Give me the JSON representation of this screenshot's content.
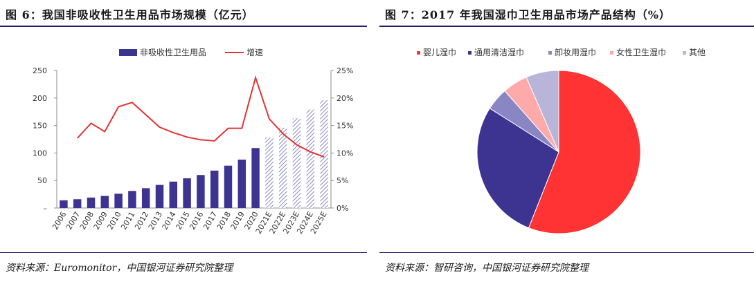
{
  "colors": {
    "bar": "#3d3491",
    "line": "#e53232",
    "forecast_hatch": "#8a86c4",
    "rule": "#1f1f66"
  },
  "left": {
    "title": "图 6：我国非吸收性卫生用品市场规模（亿元）",
    "source": "资料来源：Euromonitor，中国银河证券研究院整理"
  },
  "right": {
    "title": "图 7：2017 年我国湿巾卫生用品市场产品结构（%）",
    "source": "资料来源：智研咨询，中国银河证券研究院整理"
  },
  "chart_data": [
    {
      "type": "bar",
      "title": "图 6：我国非吸收性卫生用品市场规模（亿元）",
      "categories": [
        "2006",
        "2007",
        "2008",
        "2009",
        "2010",
        "2011",
        "2012",
        "2013",
        "2014",
        "2015",
        "2016",
        "2017",
        "2018",
        "2019",
        "2020",
        "2021E",
        "2022E",
        "2023E",
        "2024E",
        "2025E"
      ],
      "series": [
        {
          "name": "非吸收性卫生用品",
          "axis": "left",
          "values": [
            14,
            16,
            19,
            22,
            26,
            31,
            36,
            42,
            48,
            54,
            60,
            68,
            77,
            88,
            109,
            128,
            146,
            163,
            179,
            196
          ]
        },
        {
          "name": "增速",
          "type": "line",
          "axis": "right",
          "unit": "%",
          "values": [
            null,
            12.7,
            15.4,
            13.9,
            18.4,
            19.2,
            null,
            14.7,
            13.7,
            12.9,
            12.4,
            12.2,
            14.5,
            14.5,
            23.7,
            16.2,
            13.5,
            11.5,
            10.2,
            9.3
          ]
        }
      ],
      "forecast_from": "2021E",
      "ylim": [
        0,
        250
      ],
      "yticks": [
        "–",
        "50",
        "100",
        "150",
        "200",
        "250"
      ],
      "y2lim": [
        0,
        25
      ],
      "y2ticks": [
        "0%",
        "5%",
        "10%",
        "15%",
        "20%",
        "25%"
      ],
      "legend": "top-center"
    },
    {
      "type": "pie",
      "title": "图 7：2017 年我国湿巾卫生用品市场产品结构（%）",
      "labels": [
        "婴儿湿巾",
        "通用清洁湿巾",
        "卸妆用湿巾",
        "女性卫生湿巾",
        "其他"
      ],
      "values": [
        56,
        28,
        4.5,
        5,
        6.5
      ],
      "colors": [
        "#ff3333",
        "#3d3491",
        "#8a86c4",
        "#ffaaaa",
        "#b9b5d9"
      ],
      "legend": "top"
    }
  ]
}
